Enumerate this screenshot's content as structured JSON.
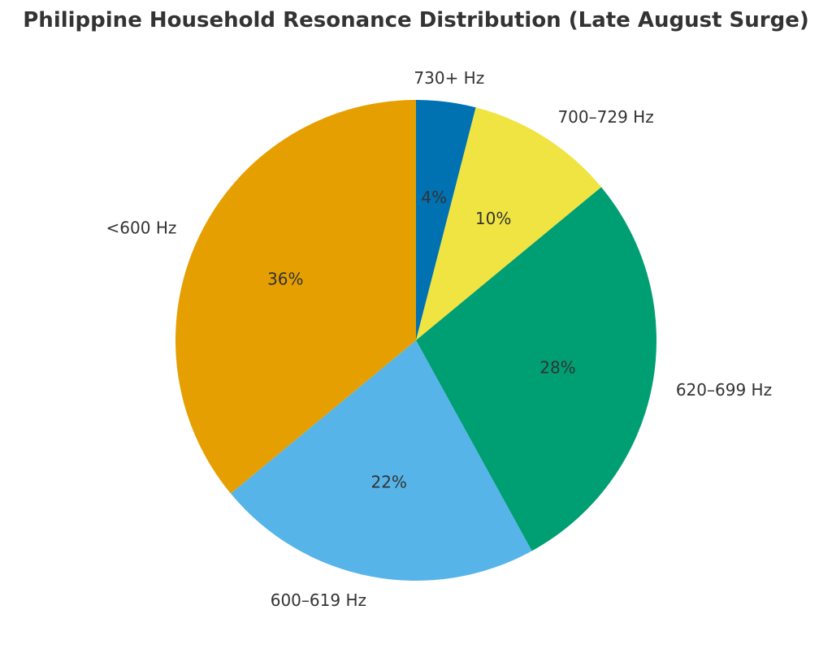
{
  "chart_data": {
    "type": "pie",
    "title": "Philippine Household Resonance Distribution (Late August Surge)",
    "start_angle": "top",
    "direction": "clockwise",
    "slices": [
      {
        "label": "730+ Hz",
        "value": 4,
        "pct_label": "4%",
        "color": "#0072B2"
      },
      {
        "label": "700–729 Hz",
        "value": 10,
        "pct_label": "10%",
        "color": "#F0E442"
      },
      {
        "label": "620–699 Hz",
        "value": 28,
        "pct_label": "28%",
        "color": "#009E73"
      },
      {
        "label": "600–619 Hz",
        "value": 22,
        "pct_label": "22%",
        "color": "#56B4E9"
      },
      {
        "label": "<600 Hz",
        "value": 36,
        "pct_label": "36%",
        "color": "#E69F00"
      }
    ]
  }
}
